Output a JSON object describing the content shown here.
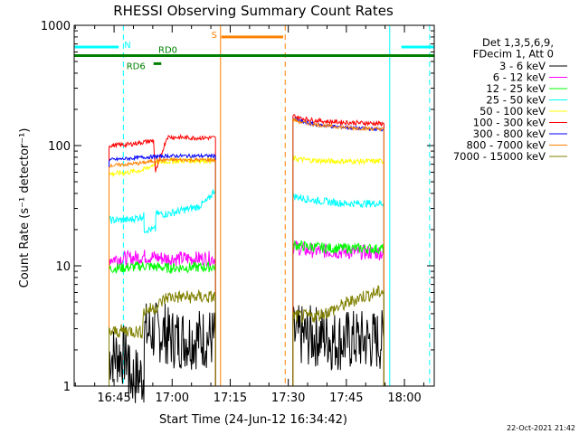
{
  "chart_data": {
    "type": "line",
    "title": "RHESSI Observing Summary Count Rates",
    "xlabel": "Start Time (24-Jun-12 16:34:42)",
    "ylabel": "Count Rate (s⁻¹ detector⁻¹)",
    "ylim": [
      1,
      1000
    ],
    "yscale": "log",
    "y_ticks": [
      {
        "value": 1,
        "label": "1"
      },
      {
        "value": 10,
        "label": "10"
      },
      {
        "value": 100,
        "label": "100"
      },
      {
        "value": 1000,
        "label": "1000"
      }
    ],
    "x_range_minutes": [
      0,
      93
    ],
    "x_ticks": [
      {
        "minute": 10.3,
        "label": "16:45"
      },
      {
        "minute": 25.3,
        "label": "17:00"
      },
      {
        "minute": 40.3,
        "label": "17:15"
      },
      {
        "minute": 55.3,
        "label": "17:30"
      },
      {
        "minute": 70.3,
        "label": "17:45"
      },
      {
        "minute": 85.3,
        "label": "18:00"
      }
    ],
    "legend_header": [
      "Det 1,3,5,6,9,",
      "FDecim 1, Att 0"
    ],
    "legend_position": "right",
    "series": [
      {
        "name": "3 - 6 keV",
        "color": "#000000",
        "segments": [
          {
            "x": [
              9,
              14,
              14.1,
              18,
              18.1,
              24,
              24.1,
              36.5
            ],
            "y": [
              1.8,
              1.8,
              1.2,
              1.2,
              2.8,
              2.8,
              2.5,
              2.5
            ]
          },
          {
            "x": [
              56.5,
              66,
              66.1,
              80
            ],
            "y": [
              2.6,
              2.6,
              2.4,
              2.4
            ]
          }
        ]
      },
      {
        "name": "6 - 12 keV",
        "color": "#ff00ff",
        "segments": [
          {
            "x": [
              9,
              14,
              18,
              24,
              36.5
            ],
            "y": [
              11.5,
              11.5,
              12,
              11.5,
              11.5
            ]
          },
          {
            "x": [
              56.5,
              60,
              66,
              72,
              80
            ],
            "y": [
              14.5,
              13.5,
              13.2,
              13,
              12.8
            ]
          }
        ]
      },
      {
        "name": "12 - 25 keV",
        "color": "#00ff00",
        "segments": [
          {
            "x": [
              9,
              14,
              18,
              24,
              36.5
            ],
            "y": [
              9.5,
              9.7,
              10,
              9.6,
              9.8
            ]
          },
          {
            "x": [
              56.5,
              60,
              66,
              72,
              80
            ],
            "y": [
              15,
              14.5,
              14,
              14,
              13.8
            ]
          }
        ]
      },
      {
        "name": "25 - 50 keV",
        "color": "#00ffff",
        "segments": [
          {
            "x": [
              9,
              14,
              18,
              18.1,
              21,
              21.1,
              24,
              28,
              32,
              34.5,
              36.5
            ],
            "y": [
              24,
              24,
              26,
              20,
              20,
              27,
              27,
              29,
              31,
              35,
              44
            ]
          },
          {
            "x": [
              56.5,
              62,
              70,
              80
            ],
            "y": [
              38,
              35,
              33,
              33
            ]
          }
        ]
      },
      {
        "name": "50 - 100 keV",
        "color": "#ffff00",
        "segments": [
          {
            "x": [
              9,
              14,
              18,
              20,
              21,
              24,
              30,
              36.5
            ],
            "y": [
              58,
              60,
              63,
              68,
              72,
              74,
              75,
              75
            ]
          },
          {
            "x": [
              56.5,
              60,
              66,
              72,
              80
            ],
            "y": [
              78,
              76,
              74,
              74,
              74
            ]
          }
        ]
      },
      {
        "name": "100 - 300 keV",
        "color": "#ff0000",
        "segments": [
          {
            "x": [
              9,
              14,
              18,
              20.5,
              21,
              24,
              30,
              36.5
            ],
            "y": [
              100,
              102,
              107,
              110,
              60,
              118,
              116,
              116
            ]
          },
          {
            "x": [
              56.5,
              58,
              62,
              66,
              72,
              80
            ],
            "y": [
              178,
              170,
              162,
              158,
              155,
              152
            ]
          }
        ]
      },
      {
        "name": "300 - 800 keV",
        "color": "#0000ff",
        "segments": [
          {
            "x": [
              9,
              14,
              18,
              24,
              30,
              36.5
            ],
            "y": [
              76,
              78,
              80,
              82,
              82,
              82
            ]
          },
          {
            "x": [
              56.5,
              58,
              62,
              66,
              72,
              80
            ],
            "y": [
              168,
              160,
              150,
              145,
              140,
              136
            ]
          }
        ]
      },
      {
        "name": "800 - 7000 keV",
        "color": "#ff8000",
        "segments": [
          {
            "x": [
              9,
              14,
              18,
              21,
              24,
              30,
              36.5
            ],
            "y": [
              68,
              70,
              72,
              75,
              76,
              76,
              76
            ]
          },
          {
            "x": [
              56.5,
              58,
              62,
              66,
              72,
              80
            ],
            "y": [
              165,
              158,
              150,
              145,
              140,
              137
            ]
          }
        ]
      },
      {
        "name": "7000 - 15000 keV",
        "color": "#808000",
        "segments": [
          {
            "x": [
              9,
              14,
              17.5,
              18,
              21,
              24,
              30,
              36.5
            ],
            "y": [
              2.8,
              2.9,
              2.8,
              4.2,
              4.5,
              5.5,
              5.5,
              5.5
            ]
          },
          {
            "x": [
              56.5,
              62,
              66,
              70,
              74,
              80
            ],
            "y": [
              3.8,
              3.8,
              4.2,
              4.8,
              5.5,
              6.2
            ]
          }
        ]
      }
    ],
    "flag_bars": [
      {
        "label": "N",
        "color": "#00ffff",
        "y": 660,
        "segments": [
          [
            0,
            11.5
          ],
          [
            84.5,
            93
          ]
        ]
      },
      {
        "label": "S",
        "color": "#ff8000",
        "y": 800,
        "segments": [
          [
            38,
            54
          ]
        ]
      },
      {
        "label": "RD0",
        "color": "#008000",
        "y": 560,
        "segments": [
          [
            0,
            93
          ]
        ]
      },
      {
        "label": "RD6",
        "color": "#008000",
        "y": 480,
        "segments": [
          [
            20.5,
            22.5
          ]
        ]
      }
    ],
    "markers": [
      {
        "minute": 0,
        "color": "#00ffff",
        "style": "solid"
      },
      {
        "minute": 12.7,
        "color": "#00ffff",
        "style": "dashed"
      },
      {
        "minute": 37.8,
        "color": "#ff8000",
        "style": "solid"
      },
      {
        "minute": 54.5,
        "color": "#ff8000",
        "style": "dashed"
      },
      {
        "minute": 81.5,
        "color": "#00ffff",
        "style": "solid"
      },
      {
        "minute": 91.8,
        "color": "#00ffff",
        "style": "dashed"
      }
    ]
  },
  "footer": {
    "date_stamp": "22-Oct-2021 21:42"
  }
}
